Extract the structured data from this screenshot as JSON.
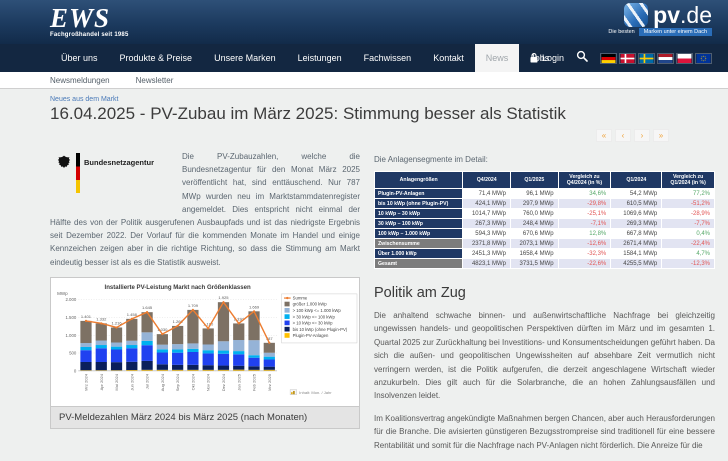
{
  "header": {
    "logo": {
      "name": "EWS",
      "tagline": "Fachgroßhandel seit 1985"
    },
    "pvde": {
      "brand_bold": "pv",
      "brand_light": ".de",
      "tagline_left": "Die besten",
      "tagline_right": "Marken unter einem Dach"
    },
    "nav": {
      "items": [
        {
          "label": "Über uns",
          "active": false
        },
        {
          "label": "Produkte & Preise",
          "active": false
        },
        {
          "label": "Unsere Marken",
          "active": false
        },
        {
          "label": "Leistungen",
          "active": false
        },
        {
          "label": "Fachwissen",
          "active": false
        },
        {
          "label": "Kontakt",
          "active": false
        },
        {
          "label": "News",
          "active": true
        },
        {
          "label": "Jobs",
          "active": false
        }
      ],
      "login_label": "Login"
    },
    "flags": [
      "germany",
      "denmark",
      "sweden",
      "netherlands",
      "poland",
      "eu"
    ],
    "subnav": [
      "Newsmeldungen",
      "Newsletter"
    ]
  },
  "article": {
    "kicker": "Neues aus dem Markt",
    "title": "16.04.2025 - PV-Zubau im März 2025: Stimmung besser als Statistik",
    "pagination": [
      "«",
      "‹",
      "›",
      "»"
    ],
    "bnetza_label": "Bundesnetzagentur",
    "intro": "Die PV-Zubauzahlen, welche die Bundesnetzagentur für den Monat März 2025 veröffentlicht hat, sind enttäuschend. Nur 787 MWp wurden neu im Marktstammdatenregister angemeldet. Dies entspricht nicht einmal der Hälfte des von der Politik ausgerufenen Ausbaupfads und ist das niedrigste Ergebnis seit Dezember 2022. Der Vorlauf für die kommenden Monate im Handel und einige Kennzeichen zeigen aber in die richtige Richtung, so dass die Stimmung am Markt eindeutig besser ist als es die Statistik ausweist.",
    "figure_caption": "PV-Meldezahlen März 2024 bis März 2025 (nach Monaten)"
  },
  "segments_table": {
    "intro": "Die Anlagensegmente im Detail:",
    "headers": [
      "Anlagengrößen",
      "Q4/2024",
      "Q1/2025",
      "Vergleich zu Q4/2024 (in %)",
      "Q1/2024",
      "Vergleich zu Q1/2024 (in %)"
    ],
    "rows": [
      {
        "label": "Plugin-PV-Anlagen",
        "q4_2024": "71,4 MWp",
        "q1_2025": "96,1 MWp",
        "vgl_q4": "34,6%",
        "q1_2024": "54,2 MWp",
        "vgl_q1": "77,2%",
        "summary": false
      },
      {
        "label": "bis 10 kWp (ohne Plugin-PV)",
        "q4_2024": "424,1 MWp",
        "q1_2025": "297,9 MWp",
        "vgl_q4": "-29,8%",
        "q1_2024": "610,5 MWp",
        "vgl_q1": "-51,2%",
        "summary": false
      },
      {
        "label": "10 kWp – 30 kWp",
        "q4_2024": "1014,7 MWp",
        "q1_2025": "760,0 MWp",
        "vgl_q4": "-25,1%",
        "q1_2024": "1069,6 MWp",
        "vgl_q1": "-28,9%",
        "summary": false
      },
      {
        "label": "30 kWp – 100 kWp",
        "q4_2024": "267,3 MWp",
        "q1_2025": "248,4 MWp",
        "vgl_q4": "-7,1%",
        "q1_2024": "269,3 MWp",
        "vgl_q1": "-7,7%",
        "summary": false
      },
      {
        "label": "100 kWp – 1.000 kWp",
        "q4_2024": "594,3 MWp",
        "q1_2025": "670,6 MWp",
        "vgl_q4": "12,8%",
        "q1_2024": "667,8 MWp",
        "vgl_q1": "0,4%",
        "summary": false
      },
      {
        "label": "Zwischensumme",
        "q4_2024": "2371,8 MWp",
        "q1_2025": "2073,1 MWp",
        "vgl_q4": "-12,6%",
        "q1_2024": "2671,4 MWp",
        "vgl_q1": "-22,4%",
        "summary": true
      },
      {
        "label": "Über 1.000 kWp",
        "q4_2024": "2451,3 MWp",
        "q1_2025": "1658,4 MWp",
        "vgl_q4": "-32,3%",
        "q1_2024": "1584,1 MWp",
        "vgl_q1": "4,7%",
        "summary": false
      },
      {
        "label": "Gesamt",
        "q4_2024": "4823,1 MWp",
        "q1_2025": "3731,5 MWp",
        "vgl_q4": "-22,6%",
        "q1_2024": "4255,5 MWp",
        "vgl_q1": "-12,3%",
        "summary": true
      }
    ],
    "positive_color": "#55a868",
    "negative_color": "#e25555"
  },
  "politik": {
    "heading": "Politik am Zug",
    "paragraphs": [
      "Die anhaltend schwache binnen- und außenwirtschaftliche Nachfrage bei gleichzeitig ungewissen handels- und geopolitischen Perspektiven dürften im März und im gesamten 1. Quartal 2025 zur Zurückhaltung bei Investitions- und Konsumentscheidungen geführt haben. Da sich die außen- und geopolitischen Ungewissheiten auf absehbare Zeit vermutlich nicht verringern werden, ist die Politik aufgerufen, die derzeit angeschlagene Wirtschaft wieder anzukurbeln. Dies gilt auch für die Solarbranche, die an hohen Zahlungsausfällen und Insolvenzen leidet.",
      "Im Koalitionsvertrag angekündigte Maßnahmen bergen Chancen, aber auch Herausforderungen für die Branche. Die avisierten günstigeren Bezugsstrompreise sind traditionell für eine bessere Rentabilität und somit für die Nachfrage nach PV-Anlagen nicht förderlich. Die Anreize für die"
    ]
  },
  "chart_data": {
    "type": "bar",
    "subtype": "stacked-bar-with-line",
    "title": "Installierte PV-Leistung Markt nach Größenklassen",
    "ylabel": "MWp",
    "ylim": [
      0,
      2100
    ],
    "yticks": [
      0,
      500,
      1000,
      1500,
      2000
    ],
    "grid": true,
    "legend_position": "right",
    "categories": [
      "Mrz 2024",
      "Apr 2024",
      "Mai 2024",
      "Jun 2024",
      "Jul 2024",
      "Aug 2024",
      "Sep 2024",
      "Okt 2024",
      "Nov 2024",
      "Dez 2024",
      "Jan 2025",
      "Feb 2025",
      "Mrz 2025"
    ],
    "totals_label": "Summe",
    "totals_color": "#ed7d31",
    "totals": [
      1401,
      1332,
      1216,
      1458,
      1645,
      1030,
      1260,
      1709,
      1190,
      1925,
      1330,
      1669,
      787
    ],
    "series": [
      {
        "name": "Plugin-PV-Anlagen",
        "color": "#ffc000",
        "values": [
          20,
          20,
          20,
          25,
          30,
          30,
          30,
          30,
          30,
          30,
          35,
          30,
          31
        ]
      },
      {
        "name": "bis 10 kWp (ohne Plugin-PV)",
        "color": "#0a1f5c",
        "values": [
          230,
          230,
          225,
          230,
          250,
          155,
          140,
          140,
          130,
          120,
          110,
          100,
          88
        ]
      },
      {
        "name": "> 10 kWp <= 30 kWp",
        "color": "#2041f0",
        "values": [
          330,
          385,
          355,
          380,
          440,
          330,
          340,
          360,
          330,
          330,
          320,
          240,
          200
        ]
      },
      {
        "name": "> 30 kWp <= 100 kWp",
        "color": "#00b0f0",
        "values": [
          90,
          90,
          80,
          90,
          120,
          90,
          90,
          90,
          90,
          90,
          90,
          70,
          80
        ]
      },
      {
        "name": "> 100 kWp <= 1.000 kWp",
        "color": "#95b3d7",
        "values": [
          110,
          125,
          115,
          120,
          240,
          130,
          150,
          150,
          160,
          260,
          310,
          420,
          110
        ]
      },
      {
        "name": "größer 1.000 kWp",
        "color": "#7d7164",
        "values": [
          621,
          482,
          421,
          613,
          565,
          295,
          510,
          939,
          450,
          1095,
          465,
          809,
          278
        ]
      }
    ],
    "footer_note": "Inhalt: Mon. / Jahr"
  }
}
